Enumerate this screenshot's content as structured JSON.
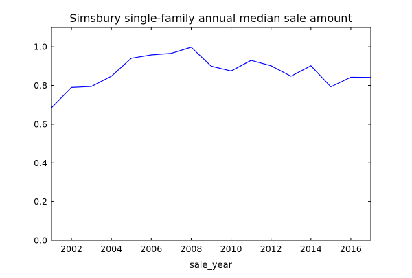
{
  "chart_data": {
    "type": "line",
    "title": "Simsbury single-family annual median sale amount",
    "xlabel": "sale_year",
    "ylabel": "",
    "xlim": [
      2001,
      2017
    ],
    "ylim": [
      0.0,
      1.1
    ],
    "x_ticks": [
      2002,
      2004,
      2006,
      2008,
      2010,
      2012,
      2014,
      2016
    ],
    "x_tick_labels": [
      "2002",
      "2004",
      "2006",
      "2008",
      "2010",
      "2012",
      "2014",
      "2016"
    ],
    "y_ticks": [
      0.0,
      0.2,
      0.4,
      0.6,
      0.8,
      1.0
    ],
    "y_tick_labels": [
      "0.0",
      "0.2",
      "0.4",
      "0.6",
      "0.8",
      "1.0"
    ],
    "grid": false,
    "legend": "none",
    "series": [
      {
        "color": "#0000ff",
        "x": [
          2001,
          2002,
          2003,
          2004,
          2005,
          2006,
          2007,
          2008,
          2009,
          2010,
          2011,
          2012,
          2013,
          2014,
          2015,
          2016,
          2017
        ],
        "y": [
          0.685,
          0.79,
          0.795,
          0.848,
          0.941,
          0.958,
          0.966,
          0.998,
          0.9,
          0.875,
          0.93,
          0.902,
          0.848,
          0.902,
          0.793,
          0.843,
          0.842
        ]
      }
    ]
  }
}
